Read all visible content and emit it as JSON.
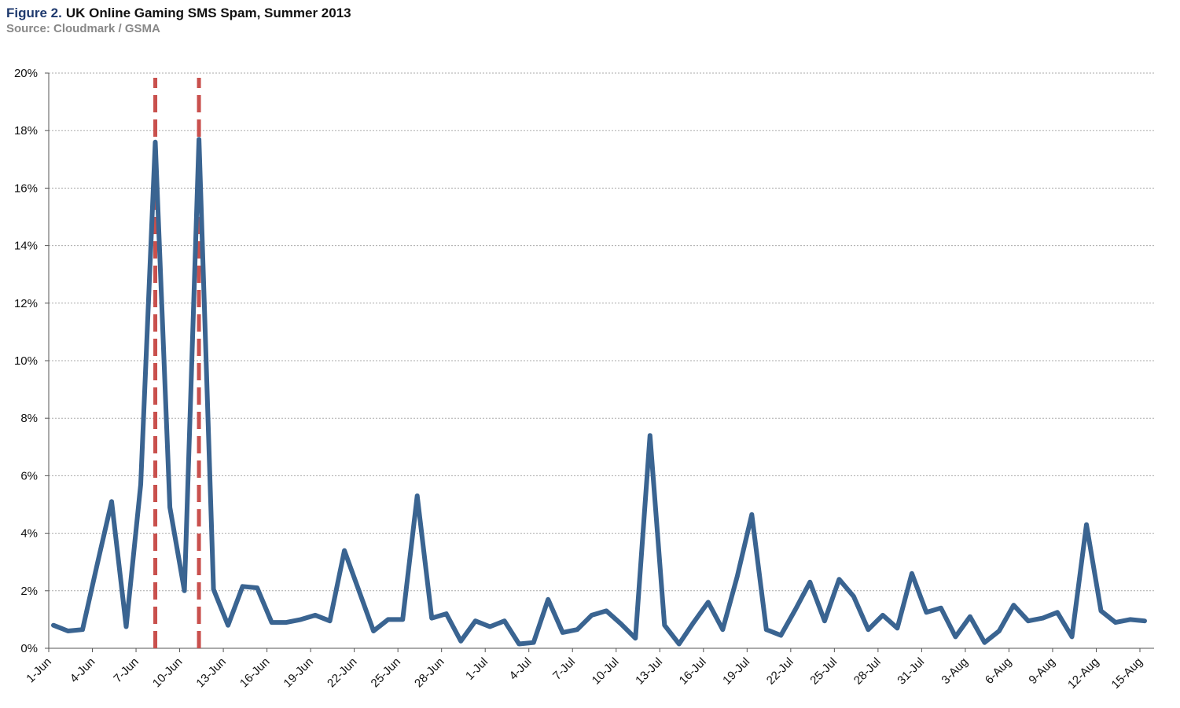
{
  "chart_data": {
    "type": "line",
    "figure_label": "Figure 2.",
    "title": "UK Online Gaming SMS Spam, Summer 2013",
    "subtitle": "Source: Cloudmark / GSMA",
    "categories": [
      "1-Jun",
      null,
      null,
      "4-Jun",
      null,
      null,
      "7-Jun",
      null,
      null,
      "10-Jun",
      null,
      null,
      "13-Jun",
      null,
      null,
      "16-Jun",
      null,
      null,
      "19-Jun",
      null,
      null,
      "22-Jun",
      null,
      null,
      "25-Jun",
      null,
      null,
      "28-Jun",
      null,
      null,
      "1-Jul",
      null,
      null,
      "4-Jul",
      null,
      null,
      "7-Jul",
      null,
      null,
      "10-Jul",
      null,
      null,
      "13-Jul",
      null,
      null,
      "16-Jul",
      null,
      null,
      "19-Jul",
      null,
      null,
      "22-Jul",
      null,
      null,
      "25-Jul",
      null,
      null,
      "28-Jul",
      null,
      null,
      "31-Jul",
      null,
      null,
      "3-Aug",
      null,
      null,
      "6-Aug",
      null,
      null,
      "9-Aug",
      null,
      null,
      "12-Aug",
      null,
      null,
      "15-Aug"
    ],
    "series": [
      {
        "color": "#3a6491",
        "values": [
          0.8,
          0.6,
          0.65,
          2.9,
          5.1,
          0.75,
          5.7,
          17.6,
          4.9,
          2.0,
          17.7,
          2.05,
          0.8,
          2.15,
          2.1,
          0.9,
          0.9,
          1.0,
          1.15,
          0.95,
          3.4,
          2.0,
          0.6,
          1.0,
          1.0,
          5.3,
          1.05,
          1.2,
          0.25,
          0.95,
          0.75,
          0.95,
          0.15,
          0.2,
          1.7,
          0.55,
          0.65,
          1.15,
          1.3,
          0.85,
          0.35,
          7.4,
          0.8,
          0.15,
          0.9,
          1.6,
          0.65,
          2.5,
          4.65,
          0.65,
          0.45,
          1.35,
          2.3,
          0.95,
          2.4,
          1.8,
          0.65,
          1.15,
          0.7,
          2.6,
          1.25,
          1.4,
          0.4,
          1.1,
          0.2,
          0.6,
          1.5,
          0.95,
          1.05,
          1.25,
          0.4,
          4.3,
          1.3,
          0.9,
          1.0,
          0.95
        ]
      }
    ],
    "vlines": [
      7,
      10
    ],
    "vline_color": "#c9504d",
    "ylim": [
      0,
      20
    ],
    "yticks": [
      {
        "value": 0,
        "label": "0%"
      },
      {
        "value": 2,
        "label": "2%"
      },
      {
        "value": 4,
        "label": "4%"
      },
      {
        "value": 6,
        "label": "6%"
      },
      {
        "value": 8,
        "label": "8%"
      },
      {
        "value": 10,
        "label": "10%"
      },
      {
        "value": 12,
        "label": "12%"
      },
      {
        "value": 14,
        "label": "14%"
      },
      {
        "value": 16,
        "label": "16%"
      },
      {
        "value": 18,
        "label": "18%"
      },
      {
        "value": 20,
        "label": "20%"
      }
    ],
    "grid": true
  }
}
